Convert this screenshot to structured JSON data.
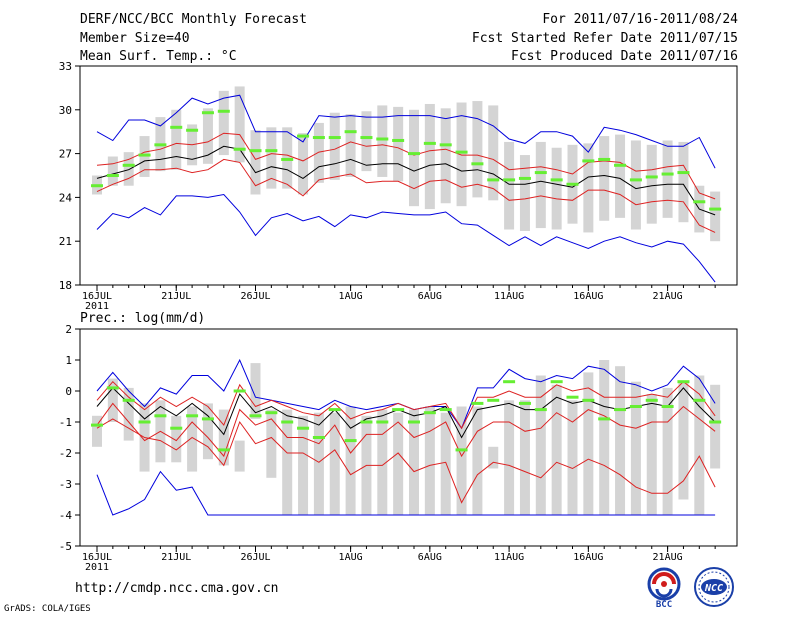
{
  "header": {
    "title": "DERF/NCC/BCC Monthly Forecast",
    "member_size": "Member Size=40",
    "variable1": "Mean Surf. Temp.: °C",
    "forecast_period": "For 2011/07/16-2011/08/24",
    "fcst_started": "Fcst Started Refer Date 2011/07/15",
    "fcst_produced": "Fcst Produced Date 2011/07/16"
  },
  "footer": {
    "url": "http://cmdp.ncc.cma.gov.cn",
    "grads": "GrADS: COLA/IGES",
    "logo_bcc": "BCC",
    "logo_ncc": "NCC"
  },
  "colors": {
    "box": "#d4d4d4",
    "median": "#66ee33",
    "mean": "#000000",
    "spread": "#dd2222",
    "extreme": "#0000dd"
  },
  "chart_data": [
    {
      "type": "box",
      "title": "Mean Surf. Temp.: °C",
      "ylim": [
        18,
        33
      ],
      "yticks": [
        18,
        21,
        24,
        27,
        30,
        33
      ],
      "day_count": 40,
      "xticks": [
        {
          "day": 0,
          "label": "16JUL",
          "sub": "2011"
        },
        {
          "day": 5,
          "label": "21JUL"
        },
        {
          "day": 10,
          "label": "26JUL"
        },
        {
          "day": 16,
          "label": "1AUG"
        },
        {
          "day": 21,
          "label": "6AUG"
        },
        {
          "day": 26,
          "label": "11AUG"
        },
        {
          "day": 31,
          "label": "16AUG"
        },
        {
          "day": 36,
          "label": "21AUG"
        }
      ],
      "box_low": [
        24.2,
        24.8,
        24.8,
        25.4,
        25.8,
        25.9,
        26.2,
        26.3,
        26.9,
        26.4,
        24.2,
        24.6,
        24.6,
        24.2,
        25.0,
        25.2,
        25.4,
        25.8,
        25.4,
        25.1,
        23.4,
        23.2,
        23.6,
        23.4,
        24.0,
        23.8,
        21.8,
        21.7,
        21.9,
        21.8,
        22.2,
        21.6,
        22.4,
        22.6,
        21.8,
        22.2,
        22.6,
        22.3,
        21.6,
        21.0
      ],
      "box_high": [
        25.5,
        26.8,
        27.1,
        28.2,
        29.5,
        30.0,
        29.0,
        30.1,
        31.3,
        31.6,
        28.6,
        28.8,
        28.8,
        28.4,
        29.1,
        29.8,
        29.7,
        29.9,
        30.3,
        30.2,
        30.0,
        30.4,
        30.1,
        30.5,
        30.6,
        30.3,
        27.8,
        26.9,
        27.8,
        27.4,
        27.6,
        27.7,
        28.2,
        28.3,
        27.9,
        27.6,
        27.9,
        27.8,
        24.8,
        24.4
      ],
      "median": [
        24.8,
        25.5,
        26.2,
        26.9,
        27.6,
        28.8,
        28.6,
        29.8,
        29.9,
        27.3,
        27.2,
        27.2,
        26.6,
        28.2,
        28.1,
        28.1,
        28.5,
        28.1,
        28.0,
        27.9,
        27.0,
        27.7,
        27.6,
        27.1,
        26.3,
        25.2,
        25.2,
        25.3,
        25.7,
        25.2,
        24.9,
        26.5,
        26.6,
        26.2,
        25.2,
        25.4,
        25.6,
        25.7,
        23.7,
        23.2
      ],
      "mean": [
        25.3,
        25.6,
        25.9,
        26.5,
        26.6,
        26.8,
        26.6,
        26.9,
        27.5,
        27.3,
        25.7,
        26.1,
        25.9,
        25.3,
        26.1,
        26.3,
        26.6,
        26.2,
        26.3,
        26.3,
        25.8,
        26.2,
        26.3,
        25.8,
        25.9,
        25.6,
        24.9,
        24.9,
        25.1,
        24.9,
        24.7,
        25.4,
        25.5,
        25.3,
        24.6,
        24.8,
        24.9,
        24.9,
        23.2,
        22.8
      ],
      "upper": [
        26.2,
        26.3,
        26.6,
        27.1,
        27.3,
        27.7,
        27.6,
        27.8,
        28.4,
        28.3,
        26.6,
        27.0,
        26.9,
        26.5,
        27.1,
        27.3,
        27.8,
        27.5,
        27.6,
        27.4,
        26.9,
        27.2,
        27.3,
        26.9,
        26.9,
        26.6,
        25.9,
        26.0,
        26.1,
        25.9,
        25.6,
        26.4,
        26.5,
        26.4,
        25.8,
        25.9,
        26.1,
        26.2,
        24.3,
        23.9
      ],
      "lower": [
        24.4,
        24.9,
        25.3,
        25.9,
        25.9,
        26.0,
        25.7,
        25.9,
        26.6,
        26.4,
        24.8,
        25.3,
        24.9,
        24.1,
        25.2,
        25.4,
        25.6,
        25.0,
        25.1,
        25.1,
        24.6,
        25.1,
        25.2,
        24.7,
        24.9,
        24.6,
        23.8,
        23.9,
        24.1,
        23.9,
        23.8,
        24.5,
        24.5,
        24.2,
        23.5,
        23.7,
        23.8,
        23.7,
        22.1,
        21.6
      ],
      "max": [
        28.5,
        27.9,
        29.3,
        29.3,
        28.9,
        29.8,
        30.8,
        30.4,
        30.8,
        31.0,
        28.5,
        28.5,
        28.5,
        27.8,
        29.6,
        29.5,
        29.6,
        29.5,
        29.5,
        29.6,
        29.6,
        29.6,
        29.4,
        29.6,
        29.4,
        28.9,
        28.0,
        27.7,
        28.5,
        28.5,
        28.2,
        27.1,
        28.8,
        28.6,
        28.3,
        27.9,
        27.5,
        27.5,
        28.1,
        26.0
      ],
      "min": [
        21.8,
        22.9,
        22.6,
        23.3,
        22.8,
        24.1,
        24.1,
        24.0,
        24.2,
        23.0,
        21.4,
        22.6,
        22.9,
        22.4,
        22.7,
        22.0,
        22.8,
        22.6,
        23.0,
        22.9,
        22.8,
        22.8,
        23.0,
        22.2,
        22.1,
        21.4,
        20.7,
        21.3,
        20.7,
        21.3,
        20.9,
        20.5,
        21.0,
        21.3,
        20.9,
        20.6,
        21.0,
        20.8,
        19.6,
        18.2
      ]
    },
    {
      "type": "box",
      "title": "Prec.: log(mm/d)",
      "ylim": [
        -5,
        2
      ],
      "yticks": [
        -5,
        -4,
        -3,
        -2,
        -1,
        0,
        1,
        2
      ],
      "day_count": 40,
      "xticks": [
        {
          "day": 0,
          "label": "16JUL",
          "sub": "2011"
        },
        {
          "day": 5,
          "label": "21JUL"
        },
        {
          "day": 10,
          "label": "26JUL"
        },
        {
          "day": 16,
          "label": "1AUG"
        },
        {
          "day": 21,
          "label": "6AUG"
        },
        {
          "day": 26,
          "label": "11AUG"
        },
        {
          "day": 31,
          "label": "16AUG"
        },
        {
          "day": 36,
          "label": "21AUG"
        }
      ],
      "box_low": [
        -1.8,
        -1.0,
        -1.6,
        -2.6,
        -2.3,
        -2.3,
        -2.6,
        -2.2,
        -2.4,
        -2.6,
        -0.9,
        -2.8,
        -4.0,
        -4.0,
        -4.0,
        -4.0,
        -4.0,
        -4.0,
        -4.0,
        -4.0,
        -4.0,
        -4.0,
        -4.0,
        -4.0,
        -4.0,
        -2.5,
        -4.0,
        -4.0,
        -4.0,
        -4.0,
        -4.0,
        -4.0,
        -4.0,
        -4.0,
        -4.0,
        -4.0,
        -4.0,
        -3.5,
        -4.0,
        -2.5
      ],
      "box_high": [
        -0.8,
        0.4,
        0.1,
        -0.4,
        -0.3,
        -0.8,
        -0.5,
        -0.4,
        -0.6,
        -1.6,
        0.9,
        -0.6,
        -0.6,
        -0.8,
        -0.7,
        -0.7,
        -0.5,
        -0.8,
        -0.6,
        -0.7,
        -0.6,
        -0.5,
        -0.7,
        -0.5,
        -0.5,
        -1.8,
        -0.3,
        -0.3,
        0.5,
        0.2,
        -0.3,
        0.6,
        1.0,
        0.8,
        0.3,
        -0.1,
        0.1,
        0.3,
        0.5,
        0.2
      ],
      "median": [
        -1.1,
        0.1,
        -0.3,
        -1.0,
        -0.8,
        -1.2,
        -0.8,
        -0.9,
        -1.9,
        0.0,
        -0.8,
        -0.7,
        -1.0,
        -1.2,
        -1.5,
        -0.6,
        -1.6,
        -1.0,
        -1.0,
        -0.6,
        -1.0,
        -0.7,
        -0.6,
        -1.9,
        -0.4,
        -0.3,
        0.3,
        -0.4,
        -0.6,
        0.3,
        -0.2,
        -0.3,
        -0.9,
        -0.6,
        -0.5,
        -0.3,
        -0.5,
        0.3,
        -0.3,
        -1.0
      ],
      "mean": [
        -0.5,
        0.1,
        -0.4,
        -0.9,
        -0.5,
        -0.8,
        -0.4,
        -0.8,
        -1.4,
        -0.1,
        -0.7,
        -0.5,
        -0.8,
        -0.9,
        -1.1,
        -0.6,
        -1.2,
        -0.9,
        -0.8,
        -0.6,
        -0.8,
        -0.7,
        -0.5,
        -1.5,
        -0.6,
        -0.5,
        -0.4,
        -0.6,
        -0.6,
        -0.2,
        -0.4,
        -0.3,
        -0.5,
        -0.6,
        -0.5,
        -0.4,
        -0.5,
        0.1,
        -0.5,
        -1.0
      ],
      "upper": [
        -0.3,
        0.3,
        -0.2,
        -0.6,
        -0.2,
        -0.5,
        -0.2,
        -0.5,
        -1.1,
        0.2,
        -0.5,
        -0.3,
        -0.5,
        -0.7,
        -0.8,
        -0.4,
        -0.9,
        -0.7,
        -0.6,
        -0.4,
        -0.6,
        -0.5,
        -0.4,
        -1.2,
        -0.2,
        -0.2,
        0.0,
        -0.2,
        -0.2,
        0.2,
        0.0,
        0.1,
        -0.2,
        -0.2,
        -0.2,
        -0.1,
        -0.2,
        0.3,
        -0.1,
        -0.8
      ],
      "lower": [
        -1.1,
        -0.4,
        -1.0,
        -1.6,
        -1.3,
        -1.6,
        -1.0,
        -1.5,
        -2.1,
        -0.6,
        -1.1,
        -0.9,
        -1.5,
        -1.5,
        -1.7,
        -1.1,
        -2.0,
        -1.4,
        -1.4,
        -1.0,
        -1.5,
        -1.3,
        -1.0,
        -2.1,
        -1.3,
        -1.0,
        -1.0,
        -1.3,
        -1.2,
        -0.7,
        -1.0,
        -0.6,
        -0.8,
        -1.1,
        -1.2,
        -1.0,
        -1.0,
        -0.5,
        -0.9,
        -1.3
      ],
      "mid": [
        -1.2,
        -0.9,
        -1.2,
        -1.5,
        -1.6,
        -1.9,
        -1.5,
        -1.8,
        -2.4,
        -1.0,
        -1.7,
        -1.5,
        -2.0,
        -2.0,
        -2.3,
        -1.9,
        -2.7,
        -2.4,
        -2.4,
        -2.0,
        -2.6,
        -2.4,
        -2.3,
        -3.6,
        -2.7,
        -2.3,
        -2.4,
        -2.6,
        -2.8,
        -2.3,
        -2.5,
        -2.2,
        -2.4,
        -2.7,
        -3.1,
        -3.3,
        -3.3,
        -2.9,
        -2.1,
        -3.1
      ],
      "max": [
        0.0,
        0.6,
        0.0,
        -0.5,
        0.1,
        -0.1,
        0.5,
        0.5,
        0.0,
        1.0,
        -0.2,
        -0.3,
        -0.4,
        -0.5,
        -0.6,
        -0.3,
        -0.5,
        -0.6,
        -0.5,
        -0.4,
        -0.6,
        -0.5,
        -0.5,
        -1.2,
        0.1,
        0.1,
        0.7,
        0.4,
        0.3,
        0.5,
        0.4,
        0.8,
        0.7,
        0.3,
        0.2,
        0.0,
        0.2,
        0.8,
        0.4,
        -0.4
      ],
      "min": [
        -2.7,
        -4.0,
        -3.8,
        -3.5,
        -2.6,
        -3.2,
        -3.1,
        -4.0,
        -4.0,
        -4.0,
        -4.0,
        -4.0,
        -4.0,
        -4.0,
        -4.0,
        -4.0,
        -4.0,
        -4.0,
        -4.0,
        -4.0,
        -4.0,
        -4.0,
        -4.0,
        -4.0,
        -4.0,
        -4.0,
        -4.0,
        -4.0,
        -4.0,
        -4.0,
        -4.0,
        -4.0,
        -4.0,
        -4.0,
        -4.0,
        -4.0,
        -4.0,
        -4.0,
        -4.0,
        -4.0
      ]
    }
  ]
}
